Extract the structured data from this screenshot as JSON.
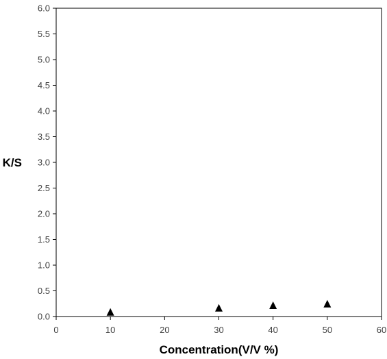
{
  "chart_data": {
    "type": "scatter",
    "title": "",
    "xlabel": "Concentration(V/V %)",
    "ylabel": "K/S",
    "xlim": [
      0,
      60
    ],
    "ylim": [
      0.0,
      6.0
    ],
    "x_ticks": [
      "0",
      "10",
      "20",
      "30",
      "40",
      "50",
      "60"
    ],
    "y_ticks": [
      "0.0",
      "0.5",
      "1.0",
      "1.5",
      "2.0",
      "2.5",
      "3.0",
      "3.5",
      "4.0",
      "4.5",
      "5.0",
      "5.5",
      "6.0"
    ],
    "grid": false,
    "legend": "none",
    "marker": "triangle",
    "marker_color": "#000000",
    "series": [
      {
        "x": [
          10,
          30,
          40,
          50
        ],
        "y": [
          0.09,
          0.17,
          0.22,
          0.25
        ]
      }
    ]
  }
}
